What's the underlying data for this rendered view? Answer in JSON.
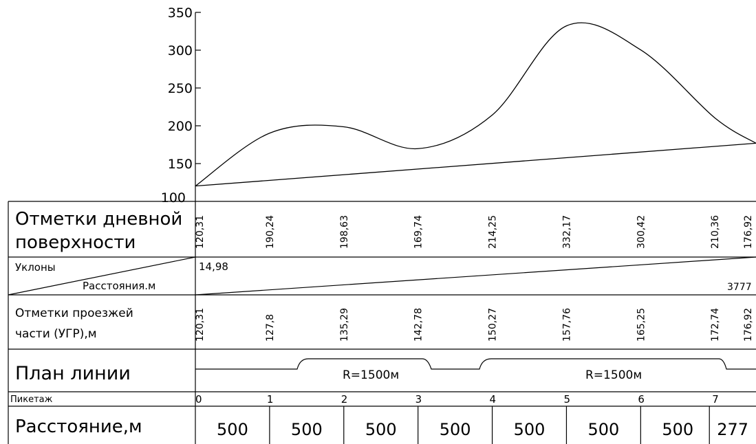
{
  "chart_data": {
    "type": "line",
    "y_ticks": [
      "350",
      "300",
      "250",
      "200",
      "150",
      "100"
    ],
    "ylim": [
      100,
      350
    ],
    "series": [
      {
        "x": [
          0,
          500,
          1000,
          1500,
          2000,
          2500,
          3000,
          3500,
          3777
        ],
        "values": [
          120.31,
          190.24,
          198.63,
          169.74,
          214.25,
          332.17,
          300.42,
          210.36,
          176.92
        ]
      },
      {
        "x": [
          0,
          500,
          1000,
          1500,
          2000,
          2500,
          3000,
          3500,
          3777
        ],
        "values": [
          120.31,
          127.8,
          135.29,
          142.78,
          150.27,
          157.76,
          165.25,
          172.74,
          176.92
        ]
      }
    ]
  },
  "table": {
    "ground_label_1": "Отметки дневной",
    "ground_label_2": "поверхности",
    "ground_values": [
      "120,31",
      "190,24",
      "198,63",
      "169,74",
      "214,25",
      "332,17",
      "300,42",
      "210,36",
      "176,92"
    ],
    "slope_label": "Уклоны",
    "distance_sub_label": "Расстояния.м",
    "slope_value": "14,98",
    "slope_length": "3777",
    "road_label_1": "Отметки проезжей",
    "road_label_2": "части (УГР),м",
    "road_values": [
      "120,31",
      "127,8",
      "135,29",
      "142,78",
      "150,27",
      "157,76",
      "165,25",
      "172,74",
      "176,92"
    ],
    "plan_label": "План линии",
    "curve_labels": [
      "R=1500м",
      "R=1500м"
    ],
    "pk_label": "Пикетаж",
    "pk_values": [
      "0",
      "1",
      "2",
      "3",
      "4",
      "5",
      "6",
      "7"
    ],
    "distance_label": "Расстояние,м",
    "distance_values": [
      "500",
      "500",
      "500",
      "500",
      "500",
      "500",
      "500",
      "277"
    ]
  }
}
